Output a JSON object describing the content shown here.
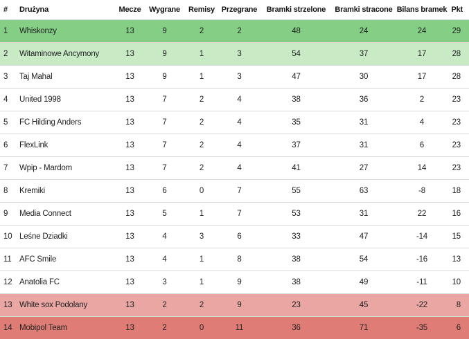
{
  "colors": {
    "promotion_1": "#84cf85",
    "promotion_2": "#c8ebc6",
    "relegation_1": "#e9a6a3",
    "relegation_2": "#e07c76"
  },
  "table": {
    "headers": [
      "#",
      "Drużyna",
      "Mecze",
      "Wygrane",
      "Remisy",
      "Przegrane",
      "Bramki strzelone",
      "Bramki stracone",
      "Bilans bramek",
      "Pkt"
    ],
    "rows": [
      {
        "pos": "1",
        "team": "Whiskonzy",
        "played": "13",
        "won": "9",
        "drawn": "2",
        "lost": "2",
        "gf": "48",
        "ga": "24",
        "gd": "24",
        "pts": "29",
        "zone": "promo-1"
      },
      {
        "pos": "2",
        "team": "Witaminowe Ancymony",
        "played": "13",
        "won": "9",
        "drawn": "1",
        "lost": "3",
        "gf": "54",
        "ga": "37",
        "gd": "17",
        "pts": "28",
        "zone": "promo-2"
      },
      {
        "pos": "3",
        "team": "Taj Mahal",
        "played": "13",
        "won": "9",
        "drawn": "1",
        "lost": "3",
        "gf": "47",
        "ga": "30",
        "gd": "17",
        "pts": "28",
        "zone": ""
      },
      {
        "pos": "4",
        "team": "United 1998",
        "played": "13",
        "won": "7",
        "drawn": "2",
        "lost": "4",
        "gf": "38",
        "ga": "36",
        "gd": "2",
        "pts": "23",
        "zone": ""
      },
      {
        "pos": "5",
        "team": "FC Hilding Anders",
        "played": "13",
        "won": "7",
        "drawn": "2",
        "lost": "4",
        "gf": "35",
        "ga": "31",
        "gd": "4",
        "pts": "23",
        "zone": ""
      },
      {
        "pos": "6",
        "team": "FlexLink",
        "played": "13",
        "won": "7",
        "drawn": "2",
        "lost": "4",
        "gf": "37",
        "ga": "31",
        "gd": "6",
        "pts": "23",
        "zone": ""
      },
      {
        "pos": "7",
        "team": "Wpip - Mardom",
        "played": "13",
        "won": "7",
        "drawn": "2",
        "lost": "4",
        "gf": "41",
        "ga": "27",
        "gd": "14",
        "pts": "23",
        "zone": ""
      },
      {
        "pos": "8",
        "team": "Kremiki",
        "played": "13",
        "won": "6",
        "drawn": "0",
        "lost": "7",
        "gf": "55",
        "ga": "63",
        "gd": "-8",
        "pts": "18",
        "zone": ""
      },
      {
        "pos": "9",
        "team": "Media Connect",
        "played": "13",
        "won": "5",
        "drawn": "1",
        "lost": "7",
        "gf": "53",
        "ga": "31",
        "gd": "22",
        "pts": "16",
        "zone": ""
      },
      {
        "pos": "10",
        "team": "Leśne Dziadki",
        "played": "13",
        "won": "4",
        "drawn": "3",
        "lost": "6",
        "gf": "33",
        "ga": "47",
        "gd": "-14",
        "pts": "15",
        "zone": ""
      },
      {
        "pos": "11",
        "team": "AFC Smile",
        "played": "13",
        "won": "4",
        "drawn": "1",
        "lost": "8",
        "gf": "38",
        "ga": "54",
        "gd": "-16",
        "pts": "13",
        "zone": ""
      },
      {
        "pos": "12",
        "team": "Anatolia FC",
        "played": "13",
        "won": "3",
        "drawn": "1",
        "lost": "9",
        "gf": "38",
        "ga": "49",
        "gd": "-11",
        "pts": "10",
        "zone": ""
      },
      {
        "pos": "13",
        "team": "White sox Podolany",
        "played": "13",
        "won": "2",
        "drawn": "2",
        "lost": "9",
        "gf": "23",
        "ga": "45",
        "gd": "-22",
        "pts": "8",
        "zone": "rel-1"
      },
      {
        "pos": "14",
        "team": "Mobipol Team",
        "played": "13",
        "won": "2",
        "drawn": "0",
        "lost": "11",
        "gf": "36",
        "ga": "71",
        "gd": "-35",
        "pts": "6",
        "zone": "rel-2"
      }
    ]
  }
}
